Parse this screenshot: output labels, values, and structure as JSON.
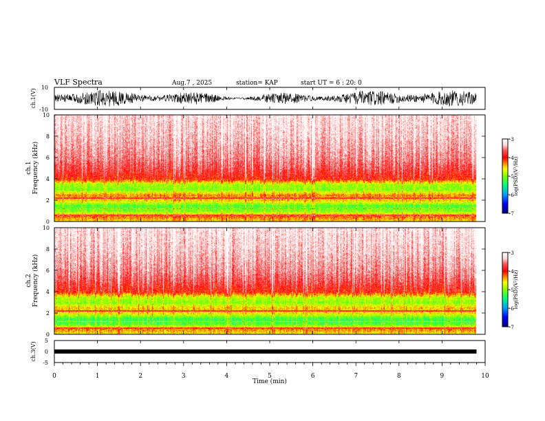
{
  "header": {
    "title": "VLF Spectra",
    "date": "Aug.7 , 2025",
    "station": "station= KAP",
    "start": "start UT = 6 : 20: 0"
  },
  "colors": {
    "background": "#ffffff",
    "axis": "#000000",
    "waveform": "#000000",
    "colormap": [
      "#000080",
      "#0000ff",
      "#00a0ff",
      "#00ff80",
      "#80ff00",
      "#ffff00",
      "#ff8000",
      "#ff0000",
      "#ff6060",
      "#ffe0e0",
      "#ffffff"
    ]
  },
  "chart_data": [
    {
      "type": "line",
      "name": "ch1-waveform",
      "ylabel": "ch.1(V)",
      "ylim": [
        -10,
        10
      ],
      "yticks": [
        "10",
        "-10"
      ],
      "xlim": [
        0,
        10
      ],
      "description_values": {
        "typical_min": -6,
        "typical_max": 6
      }
    },
    {
      "type": "heatmap",
      "name": "ch1-spectrogram",
      "ylabel_line1": "ch.1",
      "ylabel_line2": "Frequency (kHz)",
      "ylim": [
        0,
        10
      ],
      "yticks": [
        "0",
        "2",
        "4",
        "6",
        "8",
        "10"
      ],
      "xlim": [
        0,
        10
      ],
      "data_end_min": 9.8,
      "colorbar": {
        "label": "log(PSD)(V²/Hz)",
        "range": [
          -7,
          -3
        ],
        "ticks": [
          "-3",
          "-4",
          "-5",
          "-6",
          "-7"
        ]
      },
      "band_profile_freq_khz": [
        0.0,
        0.5,
        1.0,
        1.5,
        2.0,
        2.5,
        3.0,
        3.5,
        4.0,
        5.0,
        6.0,
        8.0,
        10.0
      ],
      "band_profile_logpsd": [
        -4.6,
        -4.2,
        -5.0,
        -5.2,
        -4.5,
        -4.3,
        -5.0,
        -4.9,
        -4.0,
        -3.7,
        -3.5,
        -3.3,
        -3.2
      ]
    },
    {
      "type": "heatmap",
      "name": "ch2-spectrogram",
      "ylabel_line1": "ch.2",
      "ylabel_line2": "Frequency (kHz)",
      "ylim": [
        0,
        10
      ],
      "yticks": [
        "0",
        "2",
        "4",
        "6",
        "8",
        "10"
      ],
      "xlim": [
        0,
        10
      ],
      "data_end_min": 9.8,
      "colorbar": {
        "label": "log(PSD)(V²/Hz)",
        "range": [
          -7,
          -3
        ],
        "ticks": [
          "-3",
          "-4",
          "-5",
          "-6",
          "-7"
        ]
      },
      "band_profile_freq_khz": [
        0.0,
        0.5,
        1.0,
        1.5,
        2.0,
        2.5,
        3.0,
        3.5,
        4.0,
        5.0,
        6.0,
        8.0,
        10.0
      ],
      "band_profile_logpsd": [
        -4.7,
        -4.3,
        -5.2,
        -5.3,
        -4.6,
        -4.5,
        -5.0,
        -4.8,
        -4.0,
        -3.7,
        -3.5,
        -3.3,
        -3.2
      ]
    },
    {
      "type": "line",
      "name": "ch3-waveform",
      "ylabel": "ch.3(V)",
      "ylim": [
        -5,
        5
      ],
      "yticks": [
        "5",
        "0",
        "-5"
      ],
      "xlim": [
        0,
        10
      ],
      "description_values": {
        "typical_min": -0.5,
        "typical_max": 0.5
      }
    }
  ],
  "xaxis": {
    "label": "Time (min)",
    "ticks": [
      "0",
      "1",
      "2",
      "3",
      "4",
      "5",
      "6",
      "7",
      "8",
      "9",
      "10"
    ]
  }
}
